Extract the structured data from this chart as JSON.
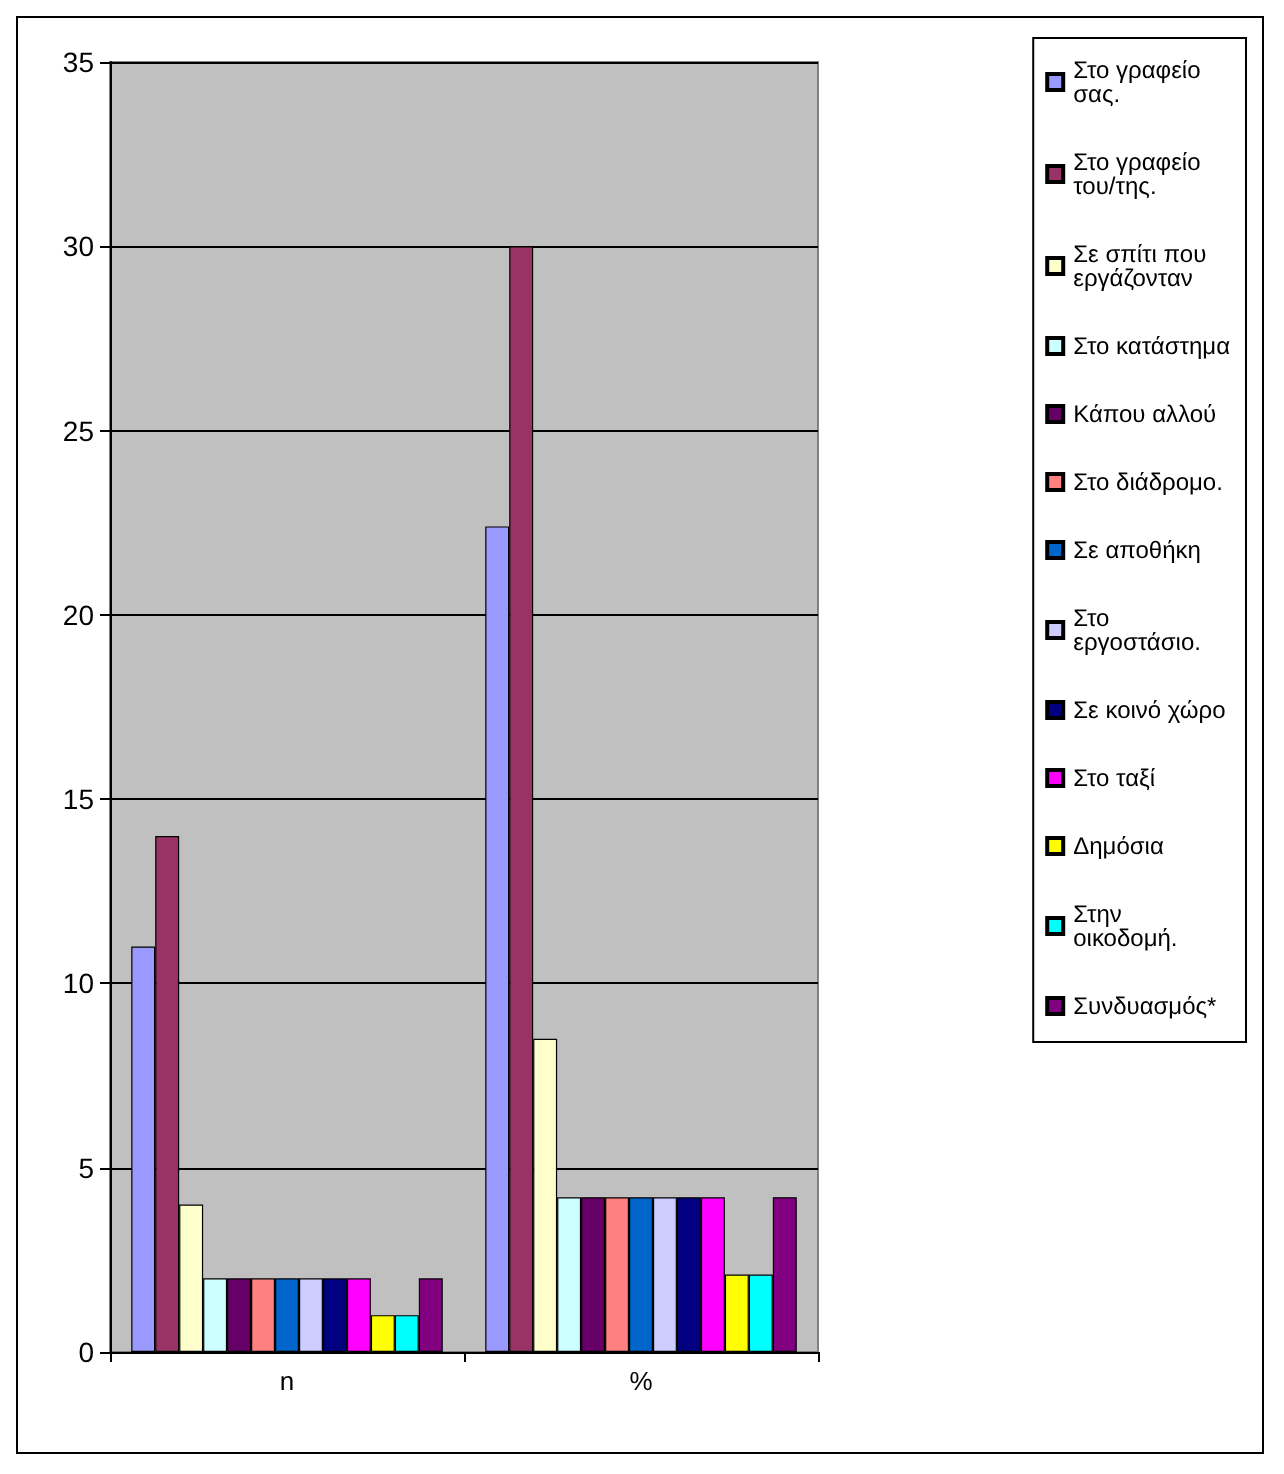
{
  "chart_data": {
    "type": "bar",
    "categories": [
      "n",
      "%"
    ],
    "series": [
      {
        "name": "Στο γραφείο σας.",
        "color": "#9999ff",
        "values": [
          11,
          22.4
        ]
      },
      {
        "name": "Στο γραφείο του/της.",
        "color": "#993366",
        "values": [
          14,
          30
        ]
      },
      {
        "name": "Σε σπίτι που εργάζονταν",
        "color": "#ffffcc",
        "values": [
          4,
          8.5
        ]
      },
      {
        "name": "Στο κατάστημα",
        "color": "#ccffff",
        "values": [
          2,
          4.2
        ]
      },
      {
        "name": "Κάπου αλλού",
        "color": "#660066",
        "values": [
          2,
          4.2
        ]
      },
      {
        "name": "Στο διάδρομο.",
        "color": "#ff8080",
        "values": [
          2,
          4.2
        ]
      },
      {
        "name": "Σε αποθήκη",
        "color": "#0066cc",
        "values": [
          2,
          4.2
        ]
      },
      {
        "name": "Στο εργοστάσιο.",
        "color": "#ccccff",
        "values": [
          2,
          4.2
        ]
      },
      {
        "name": "Σε κοινό χώρο",
        "color": "#000080",
        "values": [
          2,
          4.2
        ]
      },
      {
        "name": "Στο ταξί",
        "color": "#ff00ff",
        "values": [
          2,
          4.2
        ]
      },
      {
        "name": "Δημόσια",
        "color": "#ffff00",
        "values": [
          1,
          2.1
        ]
      },
      {
        "name": "Στην οικοδομή.",
        "color": "#00ffff",
        "values": [
          1,
          2.1
        ]
      },
      {
        "name": "Συνδυασμός*",
        "color": "#800080",
        "values": [
          2,
          4.2
        ]
      }
    ],
    "ylim": [
      0,
      35
    ],
    "yticks": [
      0,
      5,
      10,
      15,
      20,
      25,
      30,
      35
    ],
    "grid": "y",
    "legend": "right"
  }
}
